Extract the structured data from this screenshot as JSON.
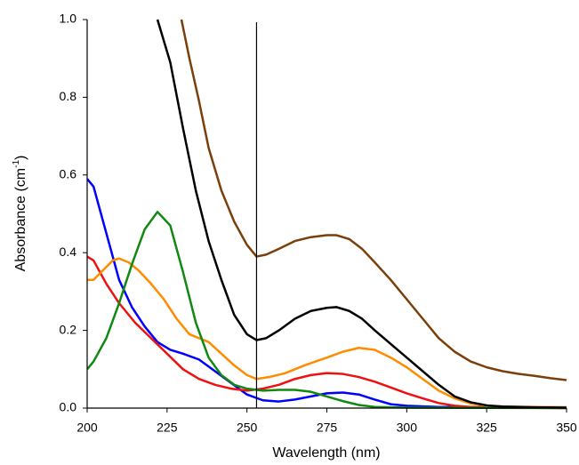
{
  "chart_data": {
    "type": "line",
    "x_label": "Wavelength (nm)",
    "y_label": [
      "Absorbance (cm",
      "-1",
      ")"
    ],
    "xlim": [
      200,
      350
    ],
    "ylim": [
      0,
      1.0
    ],
    "xticks": [
      200,
      225,
      250,
      275,
      300,
      325,
      350
    ],
    "yticks": [
      {
        "value": 0,
        "label": "0.0"
      },
      0.2,
      0.4,
      0.6,
      0.8,
      {
        "value": 1,
        "label": "1.0"
      }
    ],
    "vline": 253,
    "series": [
      {
        "color": "#0000ff",
        "x": [
          200,
          202,
          205,
          210,
          214,
          218,
          222,
          226,
          230,
          235,
          240,
          245,
          250,
          255,
          260,
          265,
          270,
          275,
          280,
          285,
          290,
          295,
          300,
          310,
          350
        ],
        "values": [
          0.59,
          0.57,
          0.48,
          0.33,
          0.26,
          0.21,
          0.17,
          0.15,
          0.14,
          0.125,
          0.095,
          0.065,
          0.035,
          0.02,
          0.017,
          0.022,
          0.03,
          0.038,
          0.04,
          0.035,
          0.022,
          0.01,
          0.006,
          0.003,
          0.002
        ]
      },
      {
        "color": "#ee1111",
        "x": [
          200,
          202,
          206,
          210,
          215,
          220,
          225,
          230,
          235,
          240,
          245,
          250,
          255,
          260,
          265,
          270,
          275,
          280,
          285,
          290,
          295,
          300,
          305,
          310,
          315,
          320,
          330,
          350
        ],
        "values": [
          0.39,
          0.38,
          0.32,
          0.27,
          0.22,
          0.18,
          0.14,
          0.1,
          0.075,
          0.06,
          0.05,
          0.045,
          0.05,
          0.06,
          0.075,
          0.085,
          0.09,
          0.088,
          0.08,
          0.068,
          0.053,
          0.038,
          0.025,
          0.013,
          0.006,
          0.003,
          0.001,
          0
        ]
      },
      {
        "color": "#ff8c00",
        "x": [
          200,
          202,
          205,
          208,
          210,
          213,
          216,
          220,
          224,
          228,
          232,
          235,
          238,
          242,
          246,
          250,
          253,
          257,
          262,
          268,
          275,
          280,
          285,
          290,
          295,
          300,
          305,
          310,
          315,
          320,
          325,
          330,
          350
        ],
        "values": [
          0.33,
          0.33,
          0.355,
          0.38,
          0.385,
          0.375,
          0.355,
          0.32,
          0.28,
          0.23,
          0.19,
          0.18,
          0.17,
          0.14,
          0.11,
          0.085,
          0.075,
          0.08,
          0.09,
          0.11,
          0.13,
          0.145,
          0.155,
          0.15,
          0.13,
          0.105,
          0.075,
          0.045,
          0.025,
          0.012,
          0.006,
          0.004,
          0.002
        ]
      },
      {
        "color": "#118811",
        "x": [
          200,
          202,
          206,
          210,
          214,
          218,
          222,
          226,
          230,
          234,
          238,
          242,
          246,
          250,
          255,
          260,
          265,
          270,
          275,
          280,
          285,
          290,
          300,
          350
        ],
        "values": [
          0.1,
          0.12,
          0.18,
          0.27,
          0.37,
          0.46,
          0.505,
          0.47,
          0.35,
          0.22,
          0.13,
          0.085,
          0.06,
          0.05,
          0.045,
          0.047,
          0.047,
          0.042,
          0.03,
          0.018,
          0.008,
          0.003,
          0.001,
          0
        ]
      },
      {
        "color": "#000000",
        "x": [
          222,
          226,
          230,
          234,
          238,
          242,
          246,
          250,
          253,
          256,
          260,
          265,
          270,
          275,
          278,
          282,
          286,
          290,
          295,
          300,
          305,
          310,
          315,
          320,
          325,
          330,
          340,
          350
        ],
        "values": [
          1.0,
          0.89,
          0.72,
          0.56,
          0.43,
          0.33,
          0.24,
          0.19,
          0.175,
          0.18,
          0.2,
          0.23,
          0.25,
          0.258,
          0.26,
          0.25,
          0.23,
          0.2,
          0.165,
          0.13,
          0.095,
          0.06,
          0.03,
          0.015,
          0.007,
          0.004,
          0.002,
          0.001
        ]
      },
      {
        "color": "#7a3f0a",
        "x": [
          229.5,
          232,
          235,
          238,
          242,
          246,
          250,
          253,
          256,
          260,
          265,
          270,
          275,
          278,
          282,
          286,
          290,
          295,
          300,
          305,
          310,
          315,
          320,
          325,
          330,
          335,
          340,
          345,
          350
        ],
        "values": [
          1.0,
          0.9,
          0.79,
          0.67,
          0.56,
          0.48,
          0.42,
          0.39,
          0.395,
          0.41,
          0.43,
          0.44,
          0.445,
          0.445,
          0.435,
          0.41,
          0.375,
          0.33,
          0.28,
          0.23,
          0.18,
          0.145,
          0.12,
          0.105,
          0.095,
          0.088,
          0.083,
          0.077,
          0.072
        ]
      }
    ]
  }
}
